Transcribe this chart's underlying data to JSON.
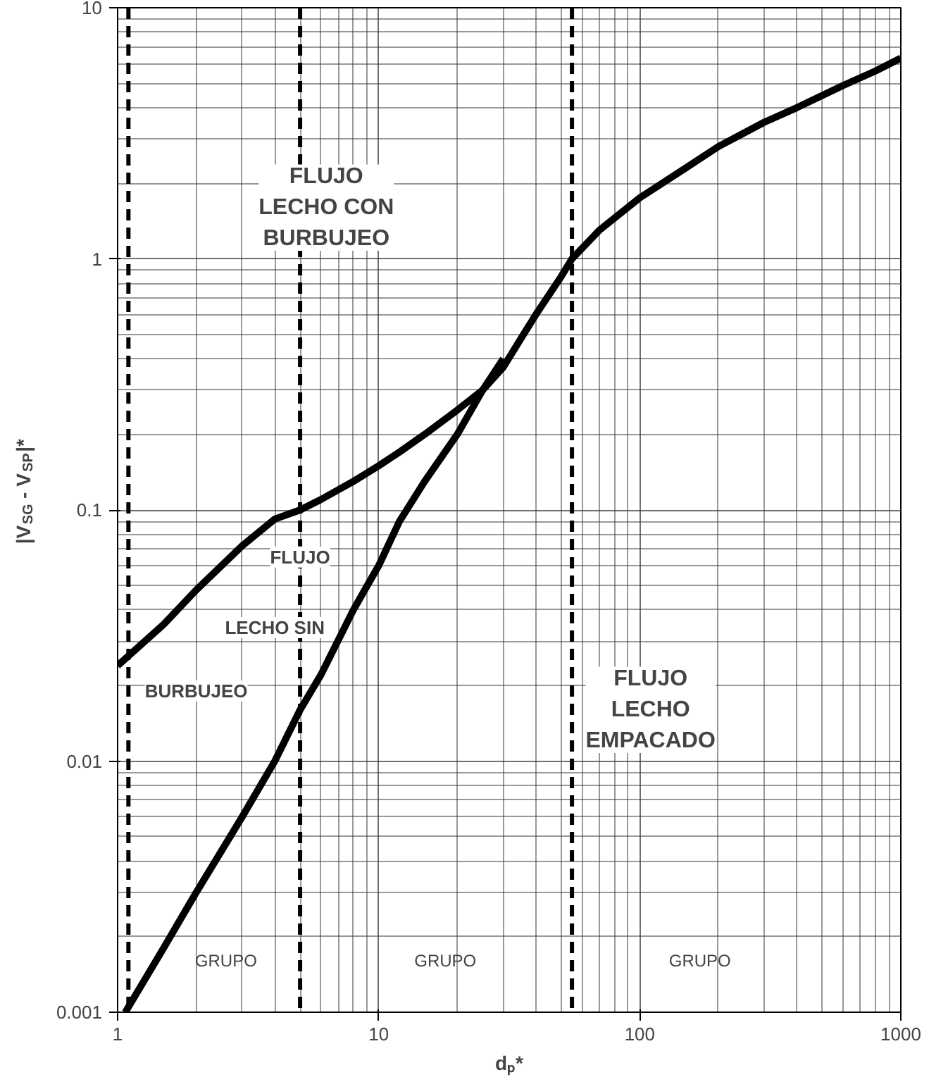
{
  "chart_data": {
    "type": "line",
    "xlabel": "dₚ*",
    "ylabel": "|V$_{SG}$ - V$_{SP}$|*",
    "log": "xy",
    "grid": true,
    "marker": "none",
    "line_style": "solid",
    "xlim": [
      1,
      1000
    ],
    "ylim": [
      0.001,
      10
    ],
    "xticks": [
      1,
      10,
      100,
      1000
    ],
    "yticks": [
      {
        "value": 0.001,
        "label": "0.001"
      },
      {
        "value": 0.01,
        "label": "0.01"
      },
      {
        "value": 0.1,
        "label": "0.1"
      },
      1,
      10
    ],
    "series": [
      {
        "color": "#000000",
        "x": [
          1,
          1.5,
          2,
          3,
          4,
          5,
          6,
          8,
          10,
          12,
          15,
          20,
          25,
          30,
          35,
          40,
          50,
          55,
          70,
          100,
          150,
          200,
          300,
          400,
          600,
          800,
          1000
        ],
        "values": [
          0.024,
          0.035,
          0.048,
          0.072,
          0.092,
          0.1,
          0.11,
          0.13,
          0.15,
          0.17,
          0.2,
          0.25,
          0.3,
          0.37,
          0.48,
          0.6,
          0.85,
          1,
          1.3,
          1.75,
          2.3,
          2.8,
          3.5,
          4,
          4.9,
          5.6,
          6.3
        ]
      },
      {
        "color": "#000000",
        "x": [
          1.07,
          1.5,
          2,
          3,
          4,
          5,
          6,
          8,
          10,
          12,
          15,
          20,
          25,
          30
        ],
        "values": [
          0.001,
          0.0018,
          0.003,
          0.006,
          0.01,
          0.016,
          0.022,
          0.04,
          0.06,
          0.09,
          0.13,
          0.2,
          0.3,
          0.4
        ]
      }
    ],
    "ref_lines": [
      {
        "axis": "x",
        "value": 1.1,
        "line_style": "dashed",
        "color": "#000000"
      },
      {
        "axis": "x",
        "value": 5,
        "line_style": "dashed",
        "color": "#000000"
      },
      {
        "axis": "x",
        "value": 55,
        "line_style": "dashed",
        "color": "#000000"
      }
    ],
    "annotations": [
      "FLUJO\nLECHO CON\nBURBUJEO",
      "FLUJO",
      "LECHO SIN",
      "BURBUJEO",
      "FLUJO\nLECHO\nEMPACADO",
      "GRUPO",
      "GRUPO",
      "GRUPO"
    ]
  }
}
